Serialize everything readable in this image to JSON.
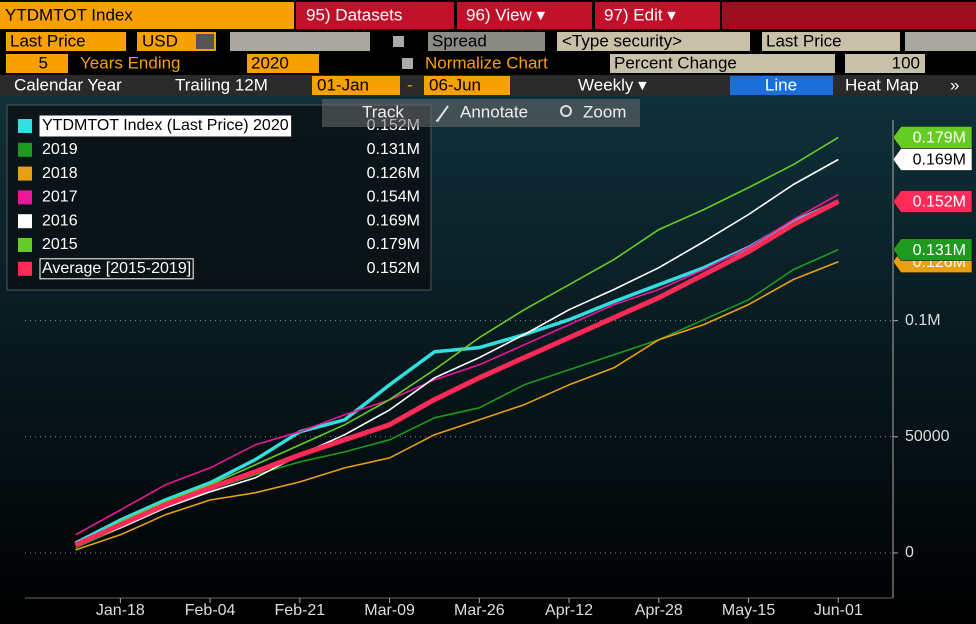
{
  "toolbar": {
    "security": "YTDMTOT Index",
    "menu": [
      "95) Datasets",
      "96) View ▾",
      "97) Edit ▾"
    ],
    "field": "Last Price",
    "currency": "USD",
    "spread": "Spread",
    "type_security": "<Type security>",
    "field2": "Last Price",
    "years": "5",
    "years_ending": "Years Ending",
    "year": "2020",
    "normalize": "Normalize Chart",
    "normalize_mode": "Percent Change",
    "base": "100",
    "calendar": "Calendar Year",
    "trailing": "Trailing 12M",
    "from": "01-Jan",
    "dash": "-",
    "to": "06-Jun",
    "period": "Weekly ▾",
    "line": "Line",
    "heatmap": "Heat Map",
    "more": "»"
  },
  "chart_tools": [
    "Track",
    "Annotate",
    "Zoom"
  ],
  "chart_data": {
    "type": "line",
    "categories": [
      null,
      "Jan-18",
      null,
      "Feb-04",
      null,
      "Feb-21",
      null,
      "Mar-09",
      null,
      "Mar-26",
      null,
      "Apr-12",
      null,
      "Apr-28",
      null,
      "May-15",
      null,
      "Jun-01"
    ],
    "ylim": [
      -19400,
      195000
    ],
    "yticks": [
      0,
      50000,
      {
        "value": 100000,
        "label": "0.1M"
      }
    ],
    "grid": true,
    "legend": "upper left",
    "series": [
      {
        "name": "YTDMTOT Index (Last Price) 2020",
        "color": "#33dede",
        "last_label": "0.152M",
        "flag": false,
        "values": [
          4300,
          14200,
          22800,
          30200,
          40100,
          52200,
          57300,
          72400,
          86600,
          88400,
          94000,
          100400,
          108200,
          115500,
          122800,
          131500,
          142700,
          151300
        ]
      },
      {
        "name": "2019",
        "color": "#1e9a1e",
        "last_label": "0.131M",
        "flag": true,
        "values": [
          2200,
          10800,
          19400,
          27200,
          33600,
          39200,
          43500,
          48700,
          58200,
          62500,
          72400,
          78900,
          85300,
          91800,
          100400,
          109000,
          122000,
          130600
        ]
      },
      {
        "name": "2018",
        "color": "#e8a010",
        "last_label": "0.126M",
        "flag": true,
        "values": [
          1300,
          7800,
          16400,
          22800,
          25900,
          30600,
          36600,
          40900,
          50900,
          57300,
          63800,
          72400,
          79700,
          91800,
          98300,
          106900,
          117700,
          125400
        ]
      },
      {
        "name": "2017",
        "color": "#e8189a",
        "last_label": "0.154M",
        "flag": false,
        "values": [
          7800,
          18500,
          29300,
          36600,
          46500,
          52200,
          59500,
          65900,
          74600,
          81000,
          89600,
          98300,
          106900,
          113400,
          122000,
          131500,
          143500,
          154300
        ]
      },
      {
        "name": "2016",
        "color": "#ffffff",
        "last_label": "0.169M",
        "flag": true,
        "values": [
          3400,
          10800,
          19400,
          26300,
          32300,
          42200,
          50900,
          61600,
          75400,
          84100,
          94000,
          104700,
          113400,
          122800,
          134000,
          145700,
          158600,
          169400
        ]
      },
      {
        "name": "2015",
        "color": "#66cc22",
        "last_label": "0.179M",
        "flag": true,
        "values": [
          3400,
          13400,
          22000,
          29300,
          37900,
          46500,
          55200,
          66000,
          78900,
          92700,
          104700,
          115500,
          126300,
          139200,
          147800,
          157300,
          167200,
          178900
        ]
      },
      {
        "name": "Average [2015-2019]",
        "color": "#ff2a58",
        "last_label": "0.152M",
        "flag": true,
        "values": [
          3400,
          12100,
          20700,
          28000,
          34900,
          42200,
          48700,
          55200,
          66000,
          75400,
          84100,
          92700,
          101300,
          109900,
          119800,
          129700,
          141400,
          151300
        ]
      }
    ]
  }
}
